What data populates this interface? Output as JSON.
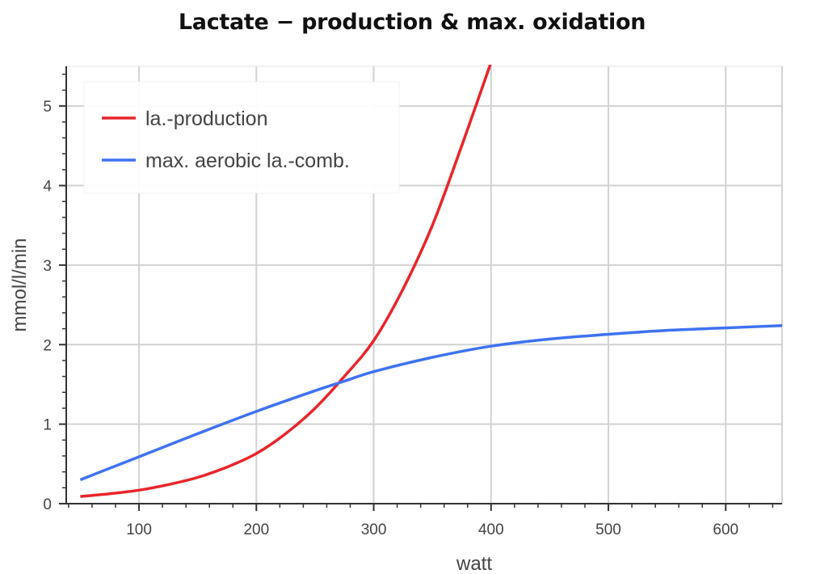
{
  "chart_data": {
    "type": "line",
    "title": "Lactate − production & max. oxidation",
    "xlabel": "watt",
    "ylabel": "mmol/l/min",
    "xlim": [
      38,
      648
    ],
    "ylim": [
      0,
      5.5
    ],
    "xticks": [
      100,
      200,
      300,
      400,
      500,
      600
    ],
    "yticks": [
      0,
      1,
      2,
      3,
      4,
      5
    ],
    "grid": true,
    "legend_position": "top-left",
    "series": [
      {
        "name": "la.-production",
        "color": "#e8252a",
        "x": [
          50,
          75,
          100,
          125,
          150,
          175,
          200,
          225,
          250,
          275,
          300,
          325,
          350,
          375,
          400
        ],
        "y": [
          0.09,
          0.125,
          0.17,
          0.24,
          0.33,
          0.46,
          0.63,
          0.88,
          1.2,
          1.6,
          2.05,
          2.7,
          3.5,
          4.5,
          5.55
        ]
      },
      {
        "name": "max. aerobic la.-comb.",
        "color": "#3f72f2",
        "x": [
          50,
          100,
          150,
          200,
          250,
          275,
          300,
          350,
          400,
          450,
          500,
          550,
          600,
          648
        ],
        "y": [
          0.3,
          0.59,
          0.88,
          1.16,
          1.42,
          1.54,
          1.66,
          1.84,
          1.98,
          2.07,
          2.13,
          2.18,
          2.21,
          2.24
        ]
      }
    ]
  }
}
